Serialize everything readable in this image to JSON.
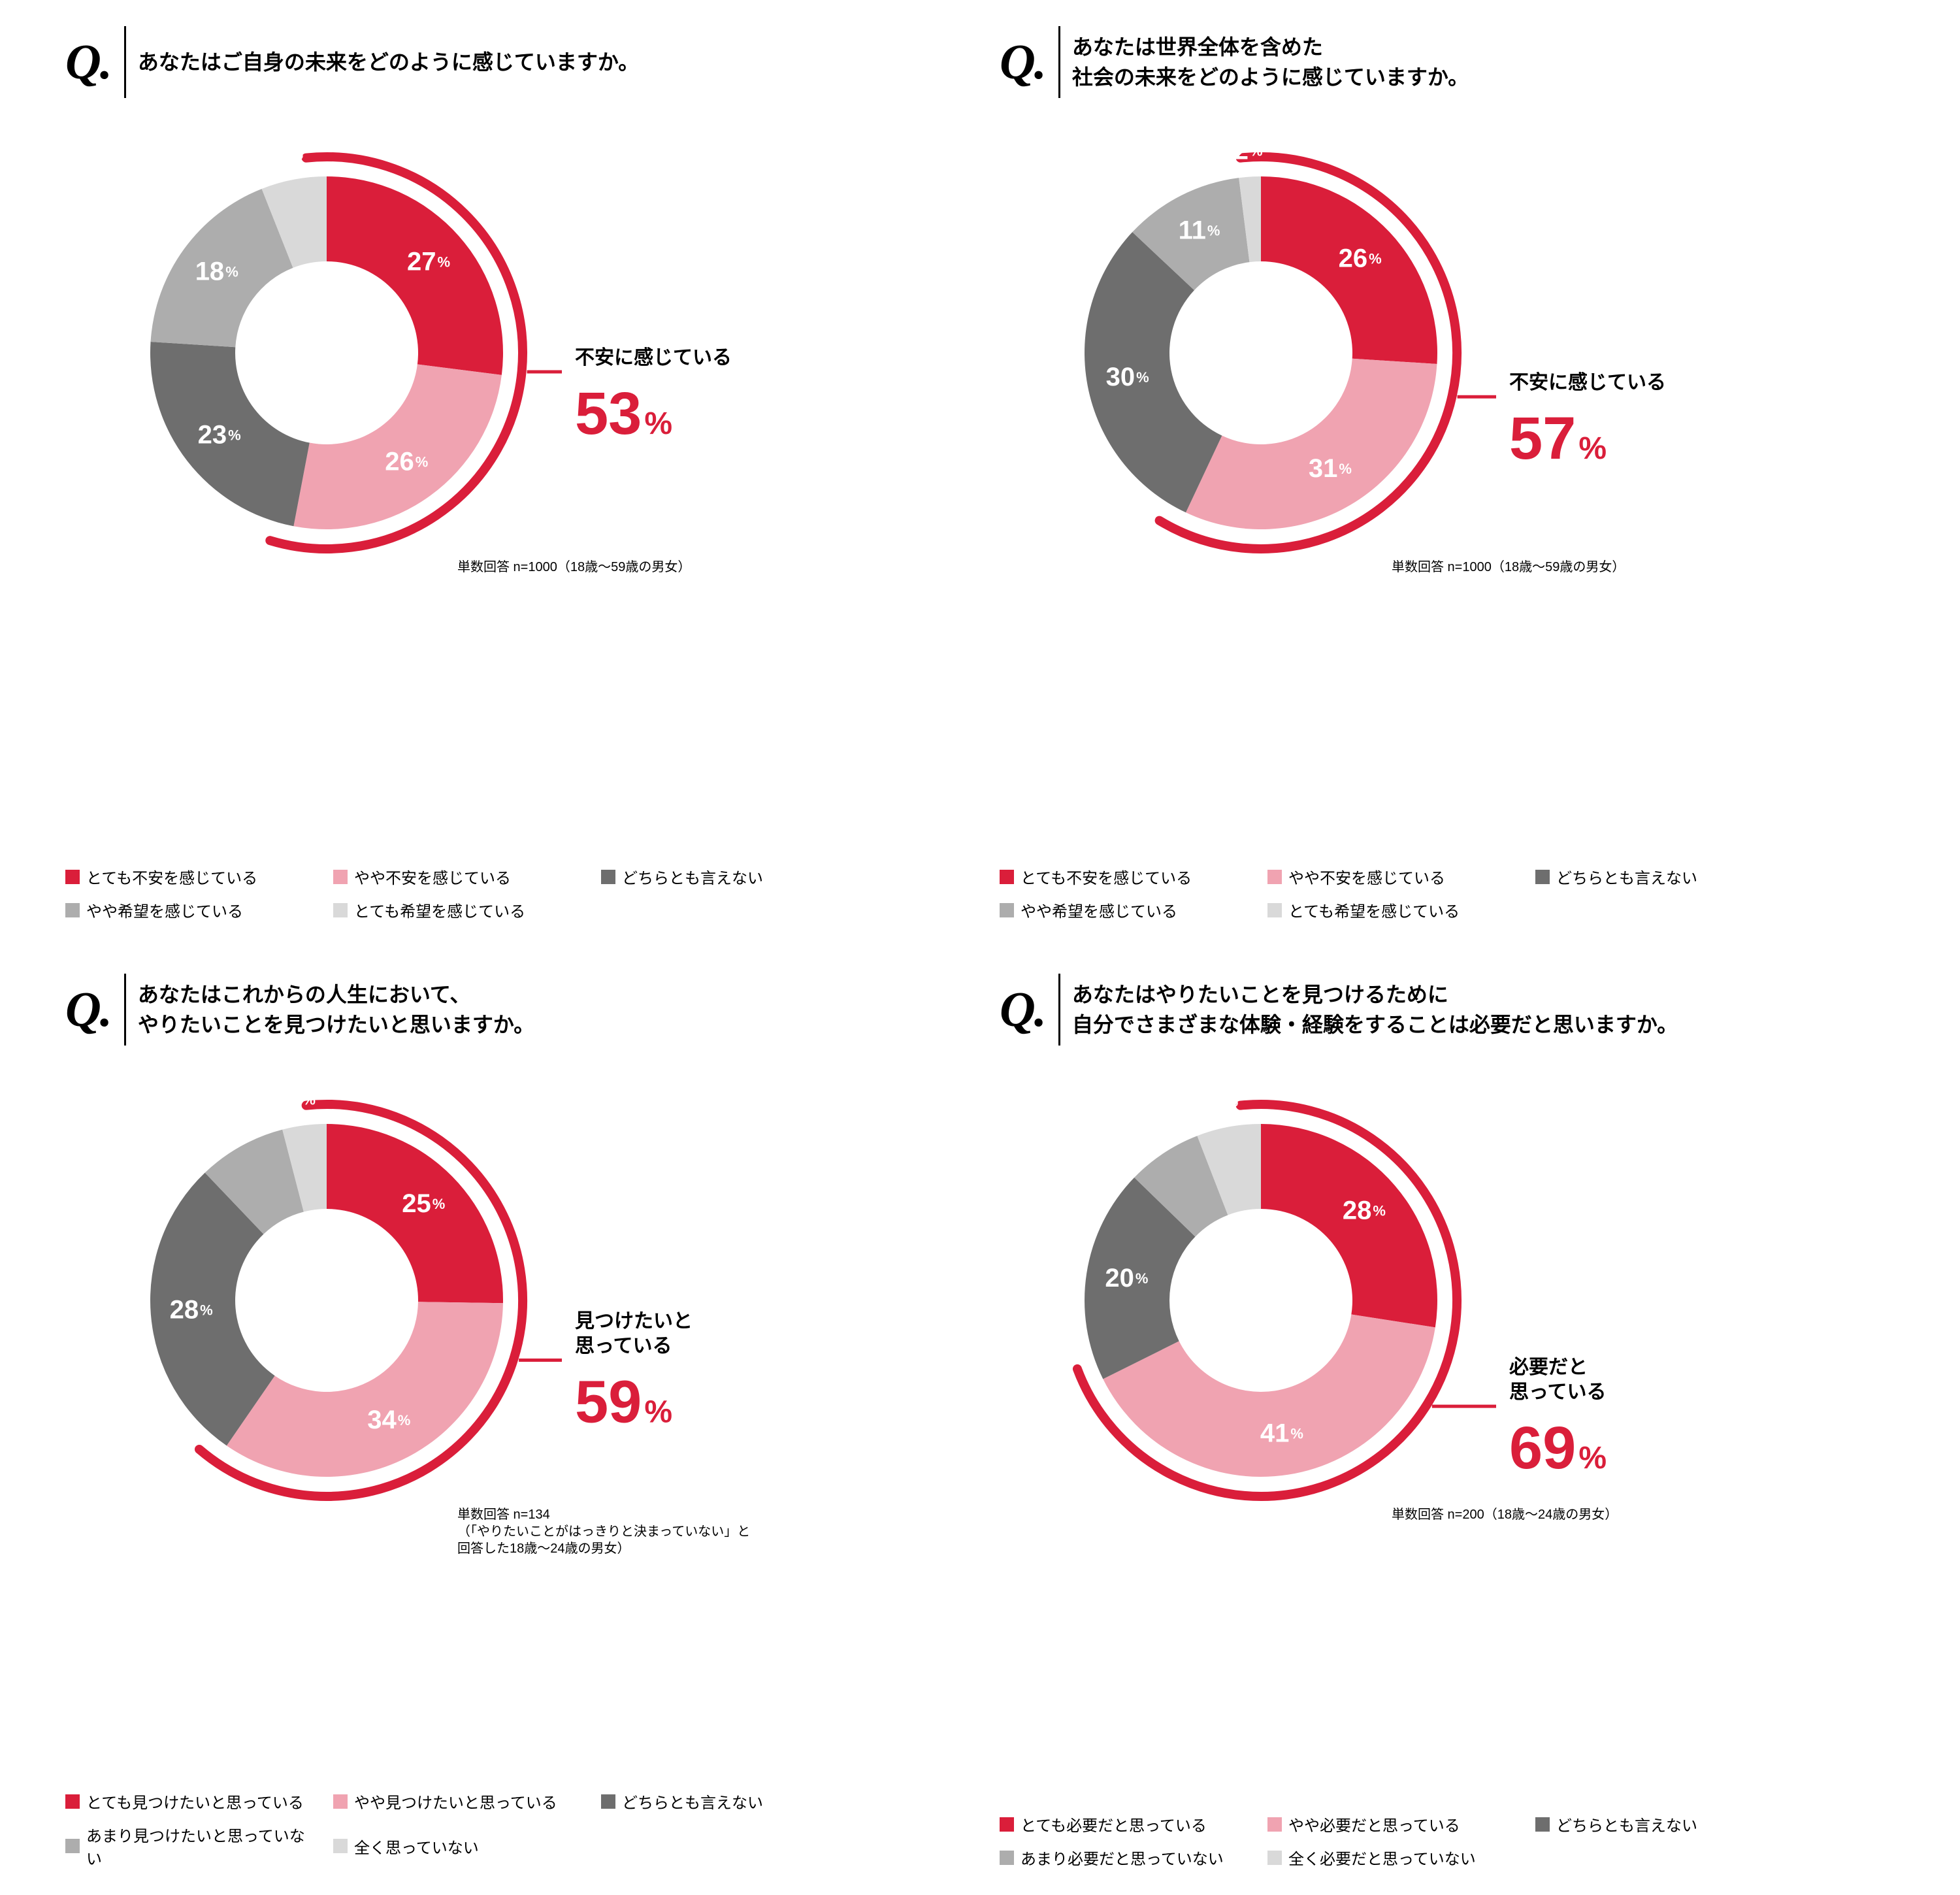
{
  "layout": {
    "columns": 2,
    "rows": 2,
    "background_color": "#ffffff"
  },
  "q_marker": "Q.",
  "percent_glyph": "%",
  "colors": {
    "accent": "#da1e3a",
    "pink": "#f0a3b1",
    "gray_dark": "#6e6e6e",
    "gray_mid": "#adadad",
    "gray_light": "#d9d9d9",
    "text": "#000000",
    "white": "#ffffff"
  },
  "donut": {
    "outer_radius": 270,
    "inner_radius": 140,
    "arc_radius": 300,
    "arc_stroke_width": 14,
    "label_radius": 208
  },
  "typography": {
    "question_fontsize": 32,
    "q_mark_fontsize": 76,
    "slice_num_fontsize": 40,
    "slice_pct_fontsize": 22,
    "callout_label_fontsize": 30,
    "callout_big_fontsize": 92,
    "callout_pct_fontsize": 48,
    "footnote_fontsize": 20,
    "legend_fontsize": 24
  },
  "panels": [
    {
      "question": "あなたはご自身の未来をどのように感じていますか。",
      "slices": [
        {
          "value": 27,
          "color": "#da1e3a"
        },
        {
          "value": 26,
          "color": "#f0a3b1"
        },
        {
          "value": 23,
          "color": "#6e6e6e"
        },
        {
          "value": 18,
          "color": "#adadad"
        },
        {
          "value": 6,
          "color": "#d9d9d9",
          "text_color": "#6e6e6e"
        }
      ],
      "highlight_sum": 53,
      "callout_label": "不安に感じている",
      "footnote": "単数回答 n=1000（18歳～59歳の男女）",
      "legend": [
        {
          "color": "#da1e3a",
          "label": "とても不安を感じている"
        },
        {
          "color": "#f0a3b1",
          "label": "やや不安を感じている"
        },
        {
          "color": "#6e6e6e",
          "label": "どちらとも言えない"
        },
        {
          "color": "#adadad",
          "label": "やや希望を感じている"
        },
        {
          "color": "#d9d9d9",
          "label": "とても希望を感じている"
        }
      ]
    },
    {
      "question": "あなたは世界全体を含めた\n社会の未来をどのように感じていますか。",
      "slices": [
        {
          "value": 26,
          "color": "#da1e3a"
        },
        {
          "value": 31,
          "color": "#f0a3b1"
        },
        {
          "value": 30,
          "color": "#6e6e6e"
        },
        {
          "value": 11,
          "color": "#adadad"
        },
        {
          "value": 2,
          "color": "#d9d9d9",
          "text_color": "#6e6e6e"
        }
      ],
      "highlight_sum": 57,
      "callout_label": "不安に感じている",
      "footnote": "単数回答 n=1000（18歳～59歳の男女）",
      "legend": [
        {
          "color": "#da1e3a",
          "label": "とても不安を感じている"
        },
        {
          "color": "#f0a3b1",
          "label": "やや不安を感じている"
        },
        {
          "color": "#6e6e6e",
          "label": "どちらとも言えない"
        },
        {
          "color": "#adadad",
          "label": "やや希望を感じている"
        },
        {
          "color": "#d9d9d9",
          "label": "とても希望を感じている"
        }
      ]
    },
    {
      "question": "あなたはこれからの人生において、\nやりたいことを見つけたいと思いますか。",
      "slices": [
        {
          "value": 25,
          "color": "#da1e3a"
        },
        {
          "value": 34,
          "color": "#f0a3b1"
        },
        {
          "value": 28,
          "color": "#6e6e6e"
        },
        {
          "value": 8,
          "color": "#adadad"
        },
        {
          "value": 4,
          "color": "#d9d9d9",
          "text_color": "#6e6e6e"
        }
      ],
      "highlight_sum": 59,
      "callout_label": "見つけたいと\n思っている",
      "footnote": "単数回答 n=134\n（「やりたいことがはっきりと決まっていない」と\n回答した18歳～24歳の男女）",
      "legend": [
        {
          "color": "#da1e3a",
          "label": "とても見つけたいと思っている"
        },
        {
          "color": "#f0a3b1",
          "label": "やや見つけたいと思っている"
        },
        {
          "color": "#6e6e6e",
          "label": "どちらとも言えない"
        },
        {
          "color": "#adadad",
          "label": "あまり見つけたいと思っていない"
        },
        {
          "color": "#d9d9d9",
          "label": "全く思っていない"
        }
      ]
    },
    {
      "question": "あなたはやりたいことを見つけるために\n自分でさまざまな体験・経験をすることは必要だと思いますか。",
      "slices": [
        {
          "value": 28,
          "color": "#da1e3a"
        },
        {
          "value": 41,
          "color": "#f0a3b1"
        },
        {
          "value": 20,
          "color": "#6e6e6e"
        },
        {
          "value": 7,
          "color": "#adadad"
        },
        {
          "value": 6,
          "color": "#d9d9d9",
          "text_color": "#6e6e6e"
        }
      ],
      "highlight_sum": 69,
      "callout_label": "必要だと\n思っている",
      "footnote": "単数回答 n=200（18歳～24歳の男女）",
      "legend": [
        {
          "color": "#da1e3a",
          "label": "とても必要だと思っている"
        },
        {
          "color": "#f0a3b1",
          "label": "やや必要だと思っている"
        },
        {
          "color": "#6e6e6e",
          "label": "どちらとも言えない"
        },
        {
          "color": "#adadad",
          "label": "あまり必要だと思っていない"
        },
        {
          "color": "#d9d9d9",
          "label": "全く必要だと思っていない"
        }
      ]
    }
  ]
}
